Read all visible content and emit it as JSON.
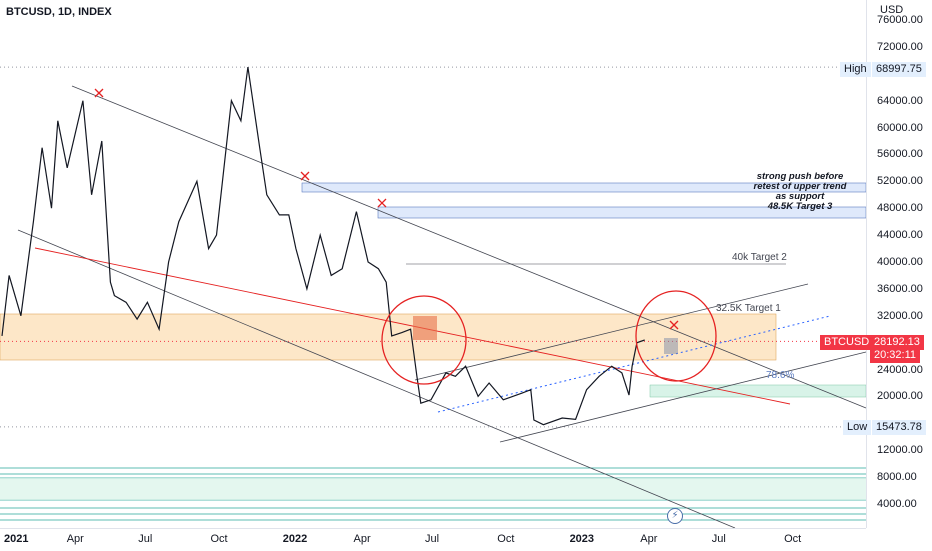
{
  "header": {
    "symbol_line": "BTCUSD, 1D, INDEX"
  },
  "price_axis": {
    "currency": "USD",
    "ticks": [
      "76000.00",
      "72000.00",
      "68000.00",
      "64000.00",
      "60000.00",
      "56000.00",
      "52000.00",
      "48000.00",
      "44000.00",
      "40000.00",
      "36000.00",
      "32000.00",
      "24000.00",
      "20000.00",
      "12000.00",
      "8000.00",
      "4000.00"
    ]
  },
  "time_axis": {
    "ticks": [
      "2021",
      "Apr",
      "Jul",
      "Oct",
      "2022",
      "Apr",
      "Jul",
      "Oct",
      "2023",
      "Apr",
      "Jul",
      "Oct"
    ]
  },
  "markers": {
    "high_label": "High",
    "high_value": "68997.75",
    "low_label": "Low",
    "low_value": "15473.78",
    "symbol_tag": "BTCUSD",
    "last_price": "28192.13",
    "countdown": "20:32:11"
  },
  "annotations": {
    "note_line1": "strong push before",
    "note_line2": "retest of upper trend",
    "note_line3": "as support",
    "note_line4": "48.5K Target 3",
    "target_40k": "40k Target 2",
    "target_32k": "32.5K Target 1",
    "fib_label": "78.6%"
  },
  "colors": {
    "red": "#e52222",
    "up": "#26a69a",
    "down": "#131722",
    "zone": "#fde7c8",
    "blue_zone": "#dfe9fb",
    "green_zone": "#d8f3e8"
  },
  "chart_data": {
    "type": "line",
    "title": "BTCUSD, 1D, INDEX",
    "ylabel": "USD",
    "y_scale": "price",
    "ylim": [
      0,
      78000
    ],
    "series": [
      {
        "name": "BTCUSD",
        "x": [
          "2021-01-01",
          "2021-01-10",
          "2021-01-25",
          "2021-02-10",
          "2021-02-21",
          "2021-03-05",
          "2021-03-13",
          "2021-03-25",
          "2021-04-14",
          "2021-04-25",
          "2021-05-08",
          "2021-05-19",
          "2021-05-24",
          "2021-06-08",
          "2021-06-22",
          "2021-07-05",
          "2021-07-20",
          "2021-08-01",
          "2021-08-14",
          "2021-09-06",
          "2021-09-21",
          "2021-10-01",
          "2021-10-20",
          "2021-11-01",
          "2021-11-10",
          "2021-11-25",
          "2021-12-04",
          "2021-12-20",
          "2022-01-01",
          "2022-01-10",
          "2022-01-24",
          "2022-02-10",
          "2022-02-24",
          "2022-03-10",
          "2022-03-28",
          "2022-04-12",
          "2022-04-25",
          "2022-05-05",
          "2022-05-12",
          "2022-05-25",
          "2022-06-05",
          "2022-06-13",
          "2022-06-18",
          "2022-07-01",
          "2022-07-20",
          "2022-08-01",
          "2022-08-14",
          "2022-08-30",
          "2022-09-13",
          "2022-10-01",
          "2022-10-25",
          "2022-11-05",
          "2022-11-09",
          "2022-11-21",
          "2022-12-15",
          "2023-01-01",
          "2023-01-15",
          "2023-01-31",
          "2023-02-16",
          "2023-03-01",
          "2023-03-10",
          "2023-03-14",
          "2023-03-20",
          "2023-03-30"
        ],
        "y": [
          29000,
          38000,
          32000,
          46000,
          57000,
          48000,
          61000,
          54000,
          64000,
          50000,
          58000,
          37000,
          35000,
          34000,
          31500,
          34000,
          30000,
          40000,
          46000,
          52000,
          42000,
          44000,
          64000,
          61000,
          69000,
          57000,
          50000,
          47000,
          47000,
          42000,
          36000,
          44000,
          38000,
          39000,
          47500,
          40000,
          39000,
          37000,
          29000,
          29500,
          30000,
          23000,
          19000,
          19500,
          23500,
          23000,
          24500,
          20000,
          22000,
          19500,
          20500,
          21000,
          16500,
          15800,
          16800,
          16600,
          21000,
          23000,
          24500,
          23500,
          20200,
          24500,
          28000,
          28400
        ]
      }
    ],
    "levels": {
      "high": 68997.75,
      "low": 15473.78,
      "last": 28192.13
    }
  }
}
